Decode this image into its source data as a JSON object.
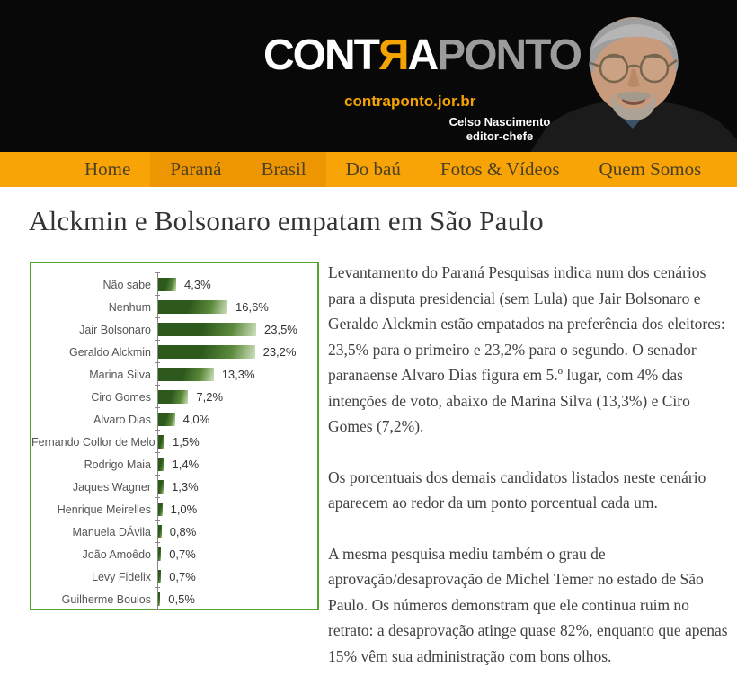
{
  "header": {
    "logo_part1": "CONT",
    "logo_part2": "Я",
    "logo_part3": "A",
    "logo_part4": "PONTO",
    "site_url": "contraponto.jor.br",
    "editor_name": "Celso Nascimento",
    "editor_role": "editor-chefe"
  },
  "nav": {
    "items": [
      {
        "label": "Home",
        "active": false
      },
      {
        "label": "Paraná",
        "active": true
      },
      {
        "label": "Brasil",
        "active": true
      },
      {
        "label": "Do baú",
        "active": false
      },
      {
        "label": "Fotos & Vídeos",
        "active": false
      },
      {
        "label": "Quem Somos",
        "active": false
      }
    ]
  },
  "article": {
    "title": "Alckmin e Bolsonaro empatam em São Paulo",
    "paragraphs": [
      "Levantamento do Paraná Pesquisas indica num dos cenários para a disputa presidencial (sem Lula) que Jair Bolsonaro e Geraldo Alckmin estão empatados na preferência dos eleitores: 23,5% para o primeiro e 23,2% para o segundo. O senador paranaense Alvaro Dias figura em 5.º lugar, com 4% das intenções de voto, abaixo de Marina Silva (13,3%) e Ciro Gomes (7,2%).",
      "Os porcentuais dos demais candidatos listados neste cenário aparecem ao redor da um ponto porcentual cada um.",
      "A mesma pesquisa mediu também o grau de aprovação/desaprovação de Michel Temer no estado de São Paulo. Os números demonstram que ele continua ruim no retrato: a desaprovação atinge quase 82%, enquanto que apenas 15% vêm sua administração com bons olhos."
    ]
  },
  "chart_data": {
    "type": "bar",
    "orientation": "horizontal",
    "title": "",
    "categories": [
      "Não sabe",
      "Nenhum",
      "Jair Bolsonaro",
      "Geraldo Alckmin",
      "Marina Silva",
      "Ciro Gomes",
      "Alvaro Dias",
      "Fernando Collor de Melo",
      "Rodrigo Maia",
      "Jaques Wagner",
      "Henrique Meirelles",
      "Manuela DÁvila",
      "João Amoêdo",
      "Levy Fidelix",
      "Guilherme Boulos"
    ],
    "values": [
      4.3,
      16.6,
      23.5,
      23.2,
      13.3,
      7.2,
      4.0,
      1.5,
      1.4,
      1.3,
      1.0,
      0.8,
      0.7,
      0.7,
      0.5
    ],
    "value_labels": [
      "4,3%",
      "16,6%",
      "23,5%",
      "23,2%",
      "13,3%",
      "7,2%",
      "4,0%",
      "1,5%",
      "1,4%",
      "1,3%",
      "1,0%",
      "0,8%",
      "0,7%",
      "0,7%",
      "0,5%"
    ],
    "xlabel": "",
    "ylabel": "",
    "xlim": [
      0,
      25
    ],
    "grid": false,
    "legend": false,
    "bar_color": "#2d5a1c",
    "box_border_color": "#56a22f"
  },
  "colors": {
    "header_bg": "#080808",
    "nav_bg": "#f8a407",
    "nav_active_bg": "#ee9502",
    "accent_orange": "#f5a302",
    "logo_gray": "#9b9b9b",
    "body_text": "#414141"
  }
}
